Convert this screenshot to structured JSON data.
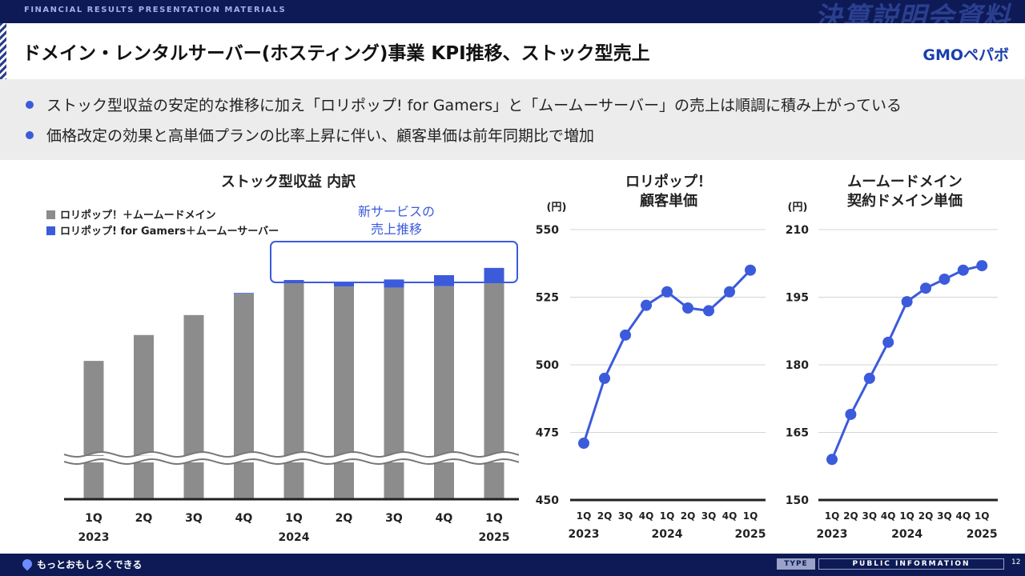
{
  "header": {
    "caption": "FINANCIAL RESULTS PRESENTATION MATERIALS",
    "big_title": "決算説明会資料",
    "title": "ドメイン・レンタルサーバー(ホスティング)事業 KPI推移、ストック型売上",
    "logo": "GMOペパボ"
  },
  "bullets": [
    "ストック型収益の安定的な推移に加え「ロリポップ! for Gamers」と「ムームーサーバー」の売上は順調に積み上がっている",
    "価格改定の効果と高単価プランの比率上昇に伴い、顧客単価は前年同期比で増加"
  ],
  "colors": {
    "accent": "#3b5bdb",
    "gray": "#8c8c8c",
    "navy": "#0d1a55"
  },
  "footer": {
    "tagline": "もっとおもしろくできる",
    "type_label": "TYPE",
    "info_label": "PUBLIC INFORMATION",
    "page": "12"
  },
  "chart_data": [
    {
      "type": "bar",
      "title": "ストック型収益 内訳",
      "categories": [
        "1Q",
        "2Q",
        "3Q",
        "4Q",
        "1Q",
        "2Q",
        "3Q",
        "4Q",
        "1Q"
      ],
      "year_labels": [
        "2023",
        "",
        "",
        "",
        "2024",
        "",
        "",
        "",
        "2025"
      ],
      "series": [
        {
          "name": "ロリポップ！＋ムームードメイン",
          "color": "#8c8c8c",
          "values": [
            0.513,
            0.609,
            0.683,
            0.762,
            0.804,
            0.789,
            0.785,
            0.79,
            0.807
          ]
        },
        {
          "name": "ロリポップ! for Gamers＋ムームーサーバー",
          "color": "#3b5bdb",
          "values": [
            0,
            0,
            0,
            0.003,
            0.009,
            0.018,
            0.03,
            0.041,
            0.051
          ]
        }
      ],
      "axis_break": true,
      "callout": "新サービスの\n売上推移",
      "callout_lines": [
        "新サービスの",
        "売上推移"
      ]
    },
    {
      "type": "line",
      "title_lines": [
        "ロリポップ！",
        "顧客単価"
      ],
      "unit": "(円)",
      "ylim": [
        450,
        550
      ],
      "yticks": [
        450,
        475,
        500,
        525,
        550
      ],
      "categories": [
        "1Q",
        "2Q",
        "3Q",
        "4Q",
        "1Q",
        "2Q",
        "3Q",
        "4Q",
        "1Q"
      ],
      "year_labels": [
        "2023",
        "",
        "",
        "",
        "2024",
        "",
        "",
        "",
        "2025"
      ],
      "values": [
        471,
        495,
        511,
        522,
        527,
        521,
        520,
        527,
        535
      ],
      "color": "#3b5bdb"
    },
    {
      "type": "line",
      "title_lines": [
        "ムームードメイン",
        "契約ドメイン単価"
      ],
      "unit": "(円)",
      "ylim": [
        150,
        210
      ],
      "yticks": [
        150,
        165,
        180,
        195,
        210
      ],
      "categories": [
        "1Q",
        "2Q",
        "3Q",
        "4Q",
        "1Q",
        "2Q",
        "3Q",
        "4Q",
        "1Q"
      ],
      "year_labels": [
        "2023",
        "",
        "",
        "",
        "2024",
        "",
        "",
        "",
        "2025"
      ],
      "values": [
        159,
        169,
        177,
        185,
        194,
        197,
        199,
        201,
        202
      ],
      "color": "#3b5bdb"
    }
  ]
}
